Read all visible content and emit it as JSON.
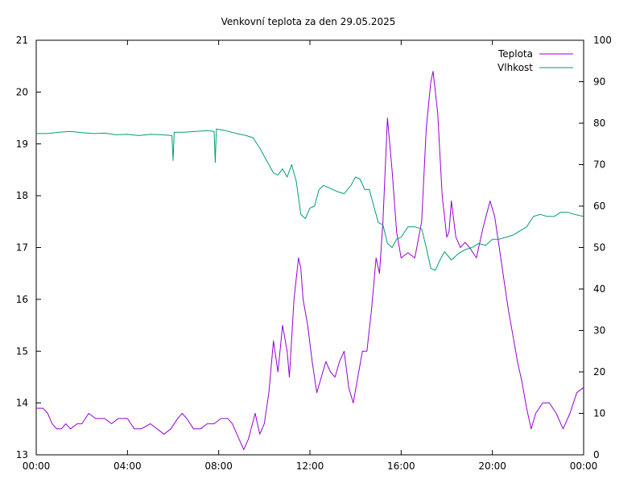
{
  "chart_data": {
    "type": "line",
    "title": "Venkovní teplota za den 29.05.2025",
    "x_ticks": [
      "00:00",
      "04:00",
      "08:00",
      "12:00",
      "16:00",
      "20:00",
      "00:00"
    ],
    "x_range_hours": [
      0,
      24
    ],
    "y_left": {
      "min": 13,
      "max": 21,
      "ticks": [
        "13",
        "14",
        "15",
        "16",
        "17",
        "18",
        "19",
        "20",
        "21"
      ]
    },
    "y_right": {
      "min": 0,
      "max": 100,
      "ticks": [
        "0",
        "10",
        "20",
        "30",
        "40",
        "50",
        "60",
        "70",
        "80",
        "90",
        "100"
      ]
    },
    "grid": false,
    "legend_position": "top-right",
    "series": [
      {
        "name": "Teplota",
        "axis": "left",
        "color": "#9400d3",
        "points": [
          [
            0.0,
            13.9
          ],
          [
            0.3,
            13.9
          ],
          [
            0.5,
            13.8
          ],
          [
            0.7,
            13.6
          ],
          [
            0.9,
            13.5
          ],
          [
            1.1,
            13.5
          ],
          [
            1.3,
            13.6
          ],
          [
            1.5,
            13.5
          ],
          [
            1.8,
            13.6
          ],
          [
            2.0,
            13.6
          ],
          [
            2.3,
            13.8
          ],
          [
            2.6,
            13.7
          ],
          [
            3.0,
            13.7
          ],
          [
            3.3,
            13.6
          ],
          [
            3.6,
            13.7
          ],
          [
            4.0,
            13.7
          ],
          [
            4.3,
            13.5
          ],
          [
            4.6,
            13.5
          ],
          [
            5.0,
            13.6
          ],
          [
            5.3,
            13.5
          ],
          [
            5.6,
            13.4
          ],
          [
            5.9,
            13.5
          ],
          [
            6.2,
            13.7
          ],
          [
            6.4,
            13.8
          ],
          [
            6.6,
            13.7
          ],
          [
            6.9,
            13.5
          ],
          [
            7.2,
            13.5
          ],
          [
            7.5,
            13.6
          ],
          [
            7.8,
            13.6
          ],
          [
            8.1,
            13.7
          ],
          [
            8.4,
            13.7
          ],
          [
            8.6,
            13.6
          ],
          [
            8.8,
            13.4
          ],
          [
            9.1,
            13.1
          ],
          [
            9.3,
            13.3
          ],
          [
            9.6,
            13.8
          ],
          [
            9.8,
            13.4
          ],
          [
            10.0,
            13.6
          ],
          [
            10.2,
            14.2
          ],
          [
            10.4,
            15.2
          ],
          [
            10.6,
            14.6
          ],
          [
            10.8,
            15.5
          ],
          [
            11.0,
            15.0
          ],
          [
            11.1,
            14.5
          ],
          [
            11.3,
            16.0
          ],
          [
            11.5,
            16.8
          ],
          [
            11.6,
            16.6
          ],
          [
            11.7,
            16.0
          ],
          [
            11.9,
            15.5
          ],
          [
            12.1,
            14.8
          ],
          [
            12.3,
            14.2
          ],
          [
            12.5,
            14.5
          ],
          [
            12.7,
            14.8
          ],
          [
            12.9,
            14.6
          ],
          [
            13.1,
            14.5
          ],
          [
            13.3,
            14.8
          ],
          [
            13.5,
            15.0
          ],
          [
            13.7,
            14.3
          ],
          [
            13.9,
            14.0
          ],
          [
            14.1,
            14.5
          ],
          [
            14.3,
            15.0
          ],
          [
            14.5,
            15.0
          ],
          [
            14.7,
            15.8
          ],
          [
            14.9,
            16.8
          ],
          [
            15.05,
            16.5
          ],
          [
            15.2,
            17.5
          ],
          [
            15.4,
            19.5
          ],
          [
            15.6,
            18.5
          ],
          [
            15.8,
            17.3
          ],
          [
            16.0,
            16.8
          ],
          [
            16.3,
            16.9
          ],
          [
            16.6,
            16.8
          ],
          [
            16.9,
            17.5
          ],
          [
            17.1,
            19.3
          ],
          [
            17.3,
            20.2
          ],
          [
            17.4,
            20.4
          ],
          [
            17.6,
            19.6
          ],
          [
            17.8,
            18.0
          ],
          [
            18.0,
            17.2
          ],
          [
            18.1,
            17.3
          ],
          [
            18.2,
            17.9
          ],
          [
            18.4,
            17.2
          ],
          [
            18.6,
            17.0
          ],
          [
            18.8,
            17.1
          ],
          [
            19.0,
            17.0
          ],
          [
            19.3,
            16.8
          ],
          [
            19.6,
            17.4
          ],
          [
            19.9,
            17.9
          ],
          [
            20.1,
            17.6
          ],
          [
            20.3,
            17.0
          ],
          [
            20.5,
            16.4
          ],
          [
            20.7,
            15.8
          ],
          [
            20.9,
            15.3
          ],
          [
            21.1,
            14.8
          ],
          [
            21.3,
            14.4
          ],
          [
            21.5,
            13.9
          ],
          [
            21.7,
            13.5
          ],
          [
            21.9,
            13.8
          ],
          [
            22.2,
            14.0
          ],
          [
            22.5,
            14.0
          ],
          [
            22.8,
            13.8
          ],
          [
            23.1,
            13.5
          ],
          [
            23.4,
            13.8
          ],
          [
            23.7,
            14.2
          ],
          [
            24.0,
            14.3
          ]
        ]
      },
      {
        "name": "Vlhkost",
        "axis": "right",
        "color": "#009e73",
        "points": [
          [
            0.0,
            77.5
          ],
          [
            0.5,
            77.5
          ],
          [
            1.0,
            77.8
          ],
          [
            1.5,
            78.0
          ],
          [
            2.0,
            77.7
          ],
          [
            2.5,
            77.5
          ],
          [
            3.0,
            77.6
          ],
          [
            3.5,
            77.2
          ],
          [
            4.0,
            77.3
          ],
          [
            4.5,
            77.0
          ],
          [
            5.0,
            77.3
          ],
          [
            5.5,
            77.2
          ],
          [
            5.95,
            77.0
          ],
          [
            6.0,
            71.0
          ],
          [
            6.05,
            77.8
          ],
          [
            6.5,
            77.8
          ],
          [
            7.0,
            78.0
          ],
          [
            7.5,
            78.2
          ],
          [
            7.8,
            78.0
          ],
          [
            7.85,
            70.5
          ],
          [
            7.9,
            78.6
          ],
          [
            8.3,
            78.2
          ],
          [
            8.8,
            77.5
          ],
          [
            9.2,
            77.0
          ],
          [
            9.5,
            76.5
          ],
          [
            9.8,
            74.0
          ],
          [
            10.0,
            72.0
          ],
          [
            10.2,
            70.0
          ],
          [
            10.4,
            68.0
          ],
          [
            10.6,
            67.5
          ],
          [
            10.8,
            69.0
          ],
          [
            11.0,
            67.0
          ],
          [
            11.2,
            70.0
          ],
          [
            11.4,
            66.0
          ],
          [
            11.6,
            58.0
          ],
          [
            11.8,
            57.0
          ],
          [
            12.0,
            59.5
          ],
          [
            12.2,
            60.0
          ],
          [
            12.4,
            64.0
          ],
          [
            12.6,
            65.0
          ],
          [
            12.8,
            64.5
          ],
          [
            13.0,
            64.0
          ],
          [
            13.2,
            63.5
          ],
          [
            13.5,
            63.0
          ],
          [
            13.8,
            65.0
          ],
          [
            14.0,
            67.0
          ],
          [
            14.2,
            66.5
          ],
          [
            14.4,
            64.0
          ],
          [
            14.6,
            64.0
          ],
          [
            14.8,
            60.0
          ],
          [
            15.0,
            56.0
          ],
          [
            15.2,
            55.5
          ],
          [
            15.4,
            51.0
          ],
          [
            15.6,
            50.0
          ],
          [
            15.8,
            52.0
          ],
          [
            16.0,
            52.5
          ],
          [
            16.3,
            55.0
          ],
          [
            16.6,
            55.0
          ],
          [
            16.9,
            54.5
          ],
          [
            17.1,
            50.0
          ],
          [
            17.3,
            45.0
          ],
          [
            17.5,
            44.5
          ],
          [
            17.7,
            47.0
          ],
          [
            17.9,
            49.0
          ],
          [
            18.2,
            47.0
          ],
          [
            18.5,
            48.5
          ],
          [
            18.8,
            49.5
          ],
          [
            19.1,
            50.0
          ],
          [
            19.4,
            51.0
          ],
          [
            19.7,
            50.5
          ],
          [
            20.0,
            52.0
          ],
          [
            20.3,
            52.0
          ],
          [
            20.6,
            52.5
          ],
          [
            20.9,
            53.0
          ],
          [
            21.2,
            54.0
          ],
          [
            21.5,
            55.0
          ],
          [
            21.8,
            57.5
          ],
          [
            22.1,
            58.0
          ],
          [
            22.4,
            57.5
          ],
          [
            22.7,
            57.5
          ],
          [
            23.0,
            58.5
          ],
          [
            23.3,
            58.5
          ],
          [
            23.6,
            58.0
          ],
          [
            24.0,
            57.5
          ]
        ]
      }
    ]
  }
}
